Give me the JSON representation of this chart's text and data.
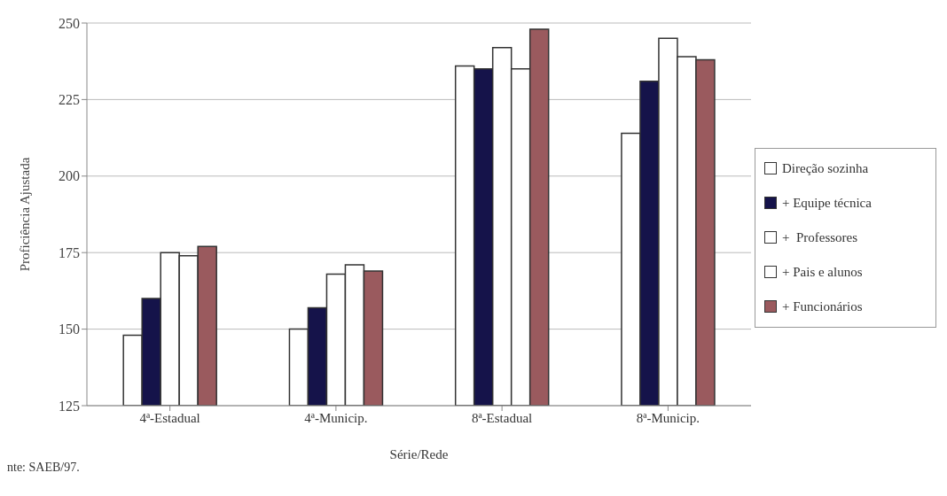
{
  "chart_data": {
    "type": "bar",
    "xlabel": "Série/Rede",
    "ylabel": "Proficiência Ajustada",
    "categories": [
      "4ª-Estadual",
      "4ª-Municip.",
      "8ª-Estadual",
      "8ª-Municip."
    ],
    "series": [
      {
        "name": "Direção sozinha",
        "color": "#ffffff",
        "values": [
          148,
          150,
          236,
          214
        ]
      },
      {
        "name": "+ Equipe técnica",
        "color": "#15134a",
        "values": [
          160,
          157,
          235,
          231
        ]
      },
      {
        "name": "+  Professores",
        "color": "#ffffff",
        "values": [
          175,
          168,
          242,
          245
        ]
      },
      {
        "name": "+ Pais e alunos",
        "color": "#ffffff",
        "values": [
          174,
          171,
          235,
          239
        ]
      },
      {
        "name": "+ Funcionários",
        "color": "#9a5a5e",
        "values": [
          177,
          169,
          248,
          238
        ]
      }
    ],
    "ylim": [
      125,
      250
    ],
    "yticks": [
      125,
      150,
      175,
      200,
      225,
      250
    ],
    "grid": "y",
    "legend": "right",
    "annotations": [
      "nte: SAEB/97."
    ]
  }
}
